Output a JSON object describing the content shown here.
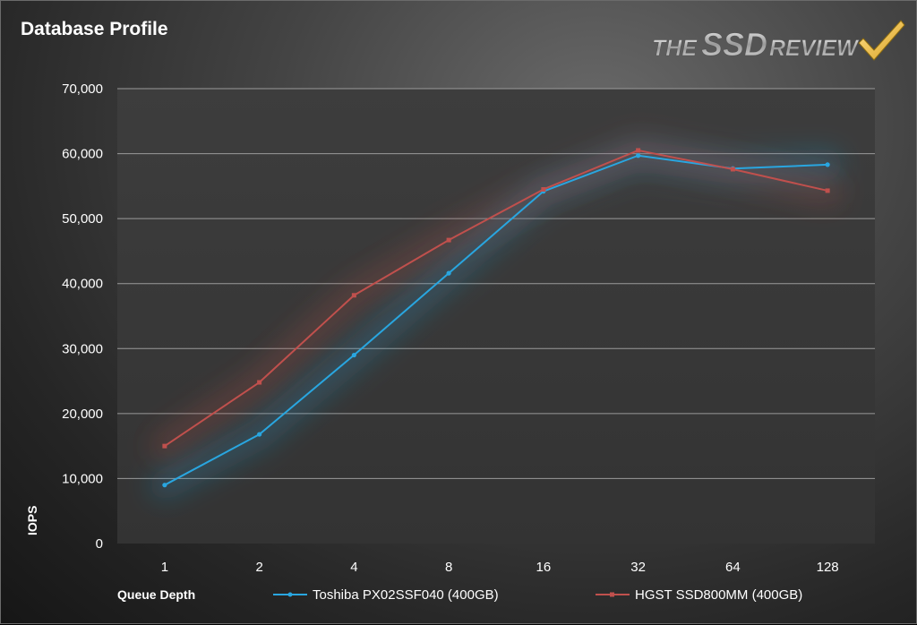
{
  "colors": {
    "series_blue": "#29a6e0",
    "series_red": "#c0504d",
    "plot_bg": "#3a3a3a",
    "grid": "#9a9a9a",
    "text": "#ffffff"
  },
  "logo": {
    "text_the": "THE",
    "text_ssd": "SSD",
    "text_review": "REVIEW",
    "icon": "checkmark-icon"
  },
  "chart_data": {
    "type": "line",
    "title": "Database Profile",
    "xlabel": "Queue Depth",
    "ylabel": "IOPS",
    "categories": [
      "1",
      "2",
      "4",
      "8",
      "16",
      "32",
      "64",
      "128"
    ],
    "ylim": [
      0,
      70000
    ],
    "yticks": [
      0,
      10000,
      20000,
      30000,
      40000,
      50000,
      60000,
      70000
    ],
    "ytick_labels": [
      "0",
      "10,000",
      "20,000",
      "30,000",
      "40,000",
      "50,000",
      "60,000",
      "70,000"
    ],
    "grid": true,
    "legend_position": "bottom",
    "series": [
      {
        "name": "Toshiba PX02SSF040 (400GB)",
        "color": "#29a6e0",
        "values": [
          9000,
          16800,
          29000,
          41600,
          54200,
          59700,
          57700,
          58300
        ]
      },
      {
        "name": "HGST SSD800MM (400GB)",
        "color": "#c0504d",
        "values": [
          15000,
          24800,
          38200,
          46700,
          54500,
          60500,
          57600,
          54300
        ]
      }
    ]
  }
}
